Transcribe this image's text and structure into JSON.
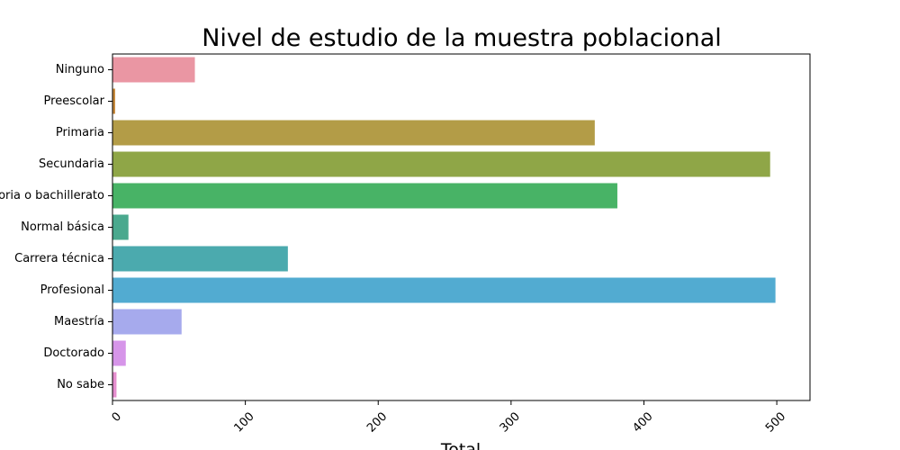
{
  "chart_data": {
    "type": "bar",
    "orientation": "horizontal",
    "title": "Nivel de estudio de la muestra poblacional",
    "xlabel": "Total",
    "ylabel": "",
    "categories": [
      "Ninguno",
      "Preescolar",
      "Primaria",
      "Secundaria",
      "Preparatoria o bachillerato",
      "Normal básica",
      "Carrera técnica",
      "Profesional",
      "Maestría",
      "Doctorado",
      "No sabe"
    ],
    "values": [
      62,
      2,
      363,
      495,
      380,
      12,
      132,
      499,
      52,
      10,
      3
    ],
    "colors": [
      "#ea96a3",
      "#c6883a",
      "#b39c47",
      "#8fa647",
      "#48b366",
      "#4aa98e",
      "#4baaae",
      "#52abd1",
      "#a6aaed",
      "#d695e9",
      "#e58ecf"
    ],
    "xlim": [
      0,
      525
    ],
    "xticks": [
      0,
      100,
      200,
      300,
      400,
      500
    ],
    "grid": false,
    "legend": "none"
  }
}
